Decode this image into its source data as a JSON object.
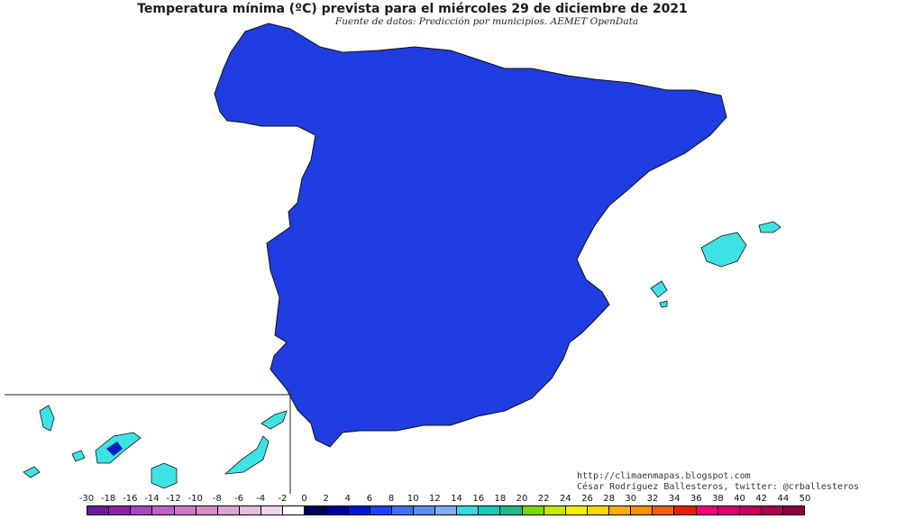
{
  "title": "Temperatura mínima (ºC) prevista para el miércoles 29 de diciembre de 2021",
  "subtitle": "Fuente de datos: Predicción por municipios. AEMET OpenData",
  "credits": {
    "url": "http://climaenmapas.blogspot.com",
    "author": "César Rodríguez Ballesteros, twitter: @crballesteros"
  },
  "legend": {
    "ticks": [
      "-30",
      "-18",
      "-16",
      "-14",
      "-12",
      "-10",
      "-8",
      "-6",
      "-4",
      "-2",
      "0",
      "2",
      "4",
      "6",
      "8",
      "10",
      "12",
      "14",
      "16",
      "18",
      "20",
      "22",
      "24",
      "26",
      "28",
      "30",
      "32",
      "34",
      "36",
      "38",
      "40",
      "42",
      "44",
      "50"
    ],
    "colors": [
      "#6a1b9a",
      "#8e24aa",
      "#ab47bc",
      "#c05fc8",
      "#cc79c7",
      "#d48fc4",
      "#dca6cf",
      "#e4bfdc",
      "#ecd6e8",
      "#ffffff",
      "#00005a",
      "#000090",
      "#0018d0",
      "#1e40ff",
      "#3f70f0",
      "#5f8cf0",
      "#80aef5",
      "#38d8e0",
      "#18c8b8",
      "#20b888",
      "#7ad800",
      "#c8e800",
      "#f0f000",
      "#f8d800",
      "#f8b000",
      "#f89000",
      "#f06010",
      "#e82000",
      "#f00078",
      "#d8006a",
      "#c0005a",
      "#a80050",
      "#8c0040"
    ]
  },
  "colors": {
    "deep": "#0a1fbf",
    "mid": "#1f3de0",
    "light": "#6a8df0",
    "pale": "#97b3f6",
    "coast": "#3fe2e2",
    "snow": "#ffffff",
    "pyrenees": "#ead6e2"
  }
}
